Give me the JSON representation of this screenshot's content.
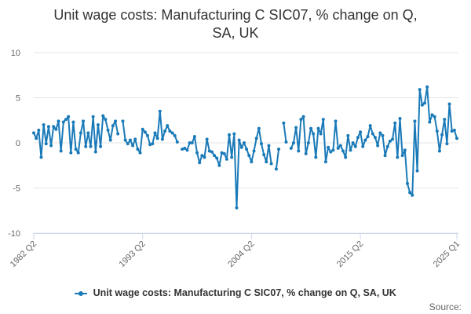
{
  "chart_data": {
    "type": "line",
    "title_line1": "Unit wage costs: Manufacturing C SIC07, % change on Q,",
    "title_line2": "SA, UK",
    "xlabel": "",
    "ylabel": "",
    "ylim": [
      -10,
      10
    ],
    "y_ticks": [
      10,
      5,
      0,
      -5,
      -10
    ],
    "y_tick_labels": [
      "10",
      "5",
      "0",
      "-5",
      "-10"
    ],
    "x_tick_labels": [
      "1982 Q2",
      "1993 Q2",
      "2004 Q2",
      "2015 Q2",
      "2025 Q1"
    ],
    "x_tick_indices": [
      0,
      44,
      88,
      132,
      171
    ],
    "series": [
      {
        "name": "Unit wage costs: Manufacturing C SIC07, % change on Q, SA, UK",
        "color": "#1a7ab8",
        "values": [
          1.1,
          0.5,
          1.4,
          -1.6,
          2.0,
          -0.1,
          1.8,
          -0.3,
          1.8,
          1.5,
          2.4,
          -0.9,
          2.3,
          2.6,
          2.9,
          -1.1,
          2.3,
          -0.7,
          -1.1,
          1.1,
          2.4,
          -0.4,
          1.1,
          -0.4,
          2.9,
          -1.0,
          2.0,
          -0.4,
          3.0,
          2.6,
          1.4,
          0.3,
          1.9,
          2.4,
          1.0,
          null,
          2.4,
          0.3,
          -0.1,
          0.3,
          -0.3,
          0.4,
          -0.7,
          -1.1,
          1.5,
          1.2,
          0.8,
          -0.2,
          -0.1,
          1.1,
          0.5,
          3.5,
          0.4,
          1.3,
          1.9,
          1.3,
          1.1,
          0.8,
          0.1,
          null,
          -0.7,
          -0.6,
          -0.8,
          0.0,
          0.0,
          0.7,
          -1.1,
          -2.2,
          -1.4,
          -1.6,
          0.4,
          -0.9,
          -1.0,
          -1.4,
          -1.7,
          -2.5,
          -1.1,
          -1.2,
          -1.8,
          0.9,
          -1.6,
          1.0,
          -7.2,
          0.3,
          -0.5,
          0.0,
          -0.7,
          -1.4,
          -2.1,
          -0.9,
          0.5,
          1.6,
          -0.1,
          -1.3,
          -2.1,
          -0.3,
          -2.3,
          null,
          -2.9,
          -0.7,
          null,
          2.2,
          0.1,
          null,
          -0.6,
          0.0,
          1.7,
          -0.9,
          2.6,
          2.9,
          -1.2,
          0.0,
          1.6,
          1.0,
          -1.6,
          1.6,
          1.0,
          2.6,
          -2.1,
          -0.5,
          -1.0,
          -0.8,
          2.4,
          -0.6,
          -0.3,
          -0.9,
          -1.6,
          0.8,
          -0.8,
          0.0,
          -0.4,
          0.6,
          1.2,
          -0.4,
          0.3,
          0.7,
          1.9,
          1.0,
          0.6,
          -0.3,
          1.1,
          0.8,
          -1.4,
          -0.4,
          0.2,
          0.4,
          2.2,
          -1.6,
          2.7,
          -1.4,
          -0.8,
          -4.5,
          -5.5,
          -5.8,
          2.4,
          -3.1,
          5.9,
          4.2,
          4.4,
          6.2,
          2.3,
          3.1,
          2.9,
          1.3,
          -0.9,
          0.9,
          2.6,
          -0.1,
          4.3,
          1.3,
          1.4,
          0.5
        ]
      }
    ]
  },
  "legend": {
    "label": "Unit wage costs: Manufacturing C SIC07, % change on Q, SA, UK"
  },
  "source": {
    "label": "Source:"
  }
}
